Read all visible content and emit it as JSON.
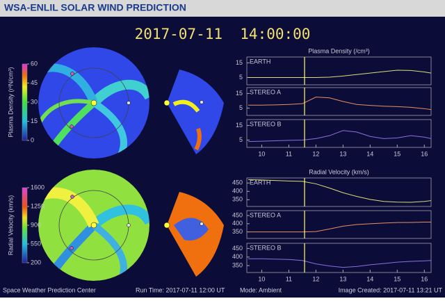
{
  "header": {
    "title": "WSA-ENLIL SOLAR WIND PREDICTION"
  },
  "timestamp": "2017-07-11  14:00:00",
  "colorbars": [
    {
      "label": "Plasma Density (r²N/cm³)",
      "lim": [
        0,
        60
      ],
      "ticks": [
        0,
        15,
        30,
        45,
        60
      ]
    },
    {
      "label": "Radial Velocity (km/s)",
      "lim": [
        200,
        1600
      ],
      "ticks": [
        200,
        550,
        900,
        1250,
        1600
      ]
    }
  ],
  "now_line": {
    "x": 11.58,
    "color": "#ffff66"
  },
  "chart_data": [
    {
      "type": "line",
      "title": "Plasma Density (/cm³)",
      "label": "EARTH",
      "color": "#d8e07a",
      "x": [
        9.5,
        10,
        10.5,
        11,
        11.5,
        12,
        12.5,
        13,
        13.5,
        14,
        14.5,
        15,
        15.5,
        16,
        16.25
      ],
      "values": [
        5,
        5,
        5,
        5,
        5,
        5,
        5.2,
        6,
        7,
        8,
        9,
        10,
        9.8,
        8.8,
        8
      ],
      "xlim": [
        9.45,
        16.25
      ],
      "ylim": [
        0,
        19
      ],
      "yticks": [
        5,
        15
      ]
    },
    {
      "type": "line",
      "label": "STEREO A",
      "color": "#e89060",
      "x": [
        9.5,
        10,
        10.5,
        11,
        11.5,
        12,
        12.5,
        13,
        13.5,
        14,
        14.5,
        15,
        15.5,
        16,
        16.25
      ],
      "values": [
        7,
        7,
        7.2,
        7.5,
        8,
        12.5,
        12,
        9.5,
        7.5,
        6.8,
        6.3,
        6,
        5.5,
        4.6,
        4
      ],
      "xlim": [
        9.45,
        16.25
      ],
      "ylim": [
        0,
        19
      ],
      "yticks": [
        5,
        15
      ]
    },
    {
      "type": "line",
      "label": "STEREO B",
      "color": "#8a70e0",
      "x": [
        9.5,
        10,
        10.5,
        11,
        11.5,
        12,
        12.5,
        13,
        13.5,
        14,
        14.5,
        15,
        15.5,
        16,
        16.25
      ],
      "values": [
        4,
        4.2,
        4.5,
        4.8,
        5,
        6,
        8,
        11.5,
        10.5,
        7.5,
        6,
        6.5,
        8,
        7,
        6
      ],
      "xlim": [
        9.45,
        16.25
      ],
      "ylim": [
        0,
        19
      ],
      "yticks": [
        5,
        15
      ],
      "xticks": [
        10,
        11,
        12,
        13,
        14,
        15,
        16
      ]
    },
    {
      "type": "line",
      "title": "Radial Velocity (km/s)",
      "label": "EARTH",
      "color": "#d8e07a",
      "x": [
        9.5,
        10,
        10.5,
        11,
        11.5,
        12,
        12.5,
        13,
        13.5,
        14,
        14.5,
        15,
        15.5,
        16,
        16.25
      ],
      "values": [
        470,
        468,
        465,
        462,
        460,
        445,
        420,
        392,
        370,
        352,
        340,
        336,
        335,
        340,
        345
      ],
      "xlim": [
        9.45,
        16.25
      ],
      "ylim": [
        310,
        480
      ],
      "yticks": [
        350,
        400,
        450
      ]
    },
    {
      "type": "line",
      "label": "STEREO A",
      "color": "#e89060",
      "x": [
        9.5,
        10,
        10.5,
        11,
        11.5,
        12,
        12.5,
        13,
        13.5,
        14,
        14.5,
        15,
        15.5,
        16,
        16.25
      ],
      "values": [
        350,
        350,
        350,
        350,
        350,
        352,
        368,
        385,
        395,
        400,
        404,
        407,
        408,
        410,
        410
      ],
      "xlim": [
        9.45,
        16.25
      ],
      "ylim": [
        310,
        480
      ],
      "yticks": [
        350,
        400,
        450
      ]
    },
    {
      "type": "line",
      "label": "STEREO B",
      "color": "#8a70e0",
      "x": [
        9.5,
        10,
        10.5,
        11,
        11.5,
        12,
        12.5,
        13,
        13.5,
        14,
        14.5,
        15,
        15.5,
        16,
        16.25
      ],
      "values": [
        390,
        390,
        388,
        386,
        380,
        360,
        348,
        340,
        345,
        355,
        362,
        370,
        375,
        378,
        380
      ],
      "xlim": [
        9.45,
        16.25
      ],
      "ylim": [
        310,
        480
      ],
      "yticks": [
        350,
        400,
        450
      ],
      "xticks": [
        10,
        11,
        12,
        13,
        14,
        15,
        16
      ]
    }
  ],
  "footer": {
    "org": "Space Weather Prediction Center",
    "run": "Run Time: 2017-07-11 12:00 UT",
    "mode": "Mode: Ambient",
    "created": "Image Created: 2017-07-11 13:21 UT"
  }
}
